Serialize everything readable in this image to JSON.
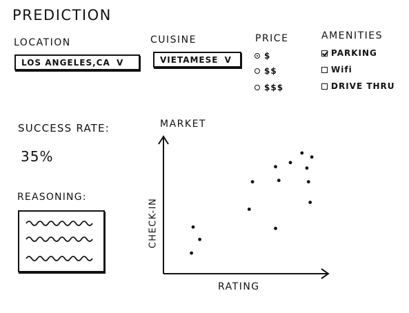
{
  "page": {
    "title": "PREDICTION"
  },
  "filters": {
    "location": {
      "label": "LOCATION",
      "value": "LOS ANGELES,CA"
    },
    "cuisine": {
      "label": "CUISINE",
      "value": "VIETAMESE"
    },
    "price": {
      "label": "PRICE",
      "options": [
        {
          "label": "$",
          "selected": true
        },
        {
          "label": "$$",
          "selected": false
        },
        {
          "label": "$$$",
          "selected": false
        }
      ]
    },
    "amenities": {
      "label": "AMENITIES",
      "options": [
        {
          "label": "PARKING",
          "checked": true
        },
        {
          "label": "Wifi",
          "checked": false
        },
        {
          "label": "DRIVE THRU",
          "checked": false
        }
      ]
    }
  },
  "results": {
    "success_label": "SUCCESS RATE:",
    "success_value": "35%",
    "reasoning_label": "REASONING:"
  },
  "chart_data": {
    "type": "scatter",
    "title": "MARKET",
    "xlabel": "RATING",
    "ylabel": "CHECK-IN",
    "grid": false,
    "points": [
      {
        "x": 0.17,
        "y": 0.15
      },
      {
        "x": 0.22,
        "y": 0.25
      },
      {
        "x": 0.18,
        "y": 0.34
      },
      {
        "x": 0.52,
        "y": 0.47
      },
      {
        "x": 0.54,
        "y": 0.67
      },
      {
        "x": 0.68,
        "y": 0.33
      },
      {
        "x": 0.68,
        "y": 0.78
      },
      {
        "x": 0.7,
        "y": 0.68
      },
      {
        "x": 0.77,
        "y": 0.81
      },
      {
        "x": 0.84,
        "y": 0.88
      },
      {
        "x": 0.87,
        "y": 0.77
      },
      {
        "x": 0.88,
        "y": 0.67
      },
      {
        "x": 0.9,
        "y": 0.85
      },
      {
        "x": 0.89,
        "y": 0.52
      }
    ],
    "arrow_color": "#111111",
    "point_color": "#111111"
  }
}
